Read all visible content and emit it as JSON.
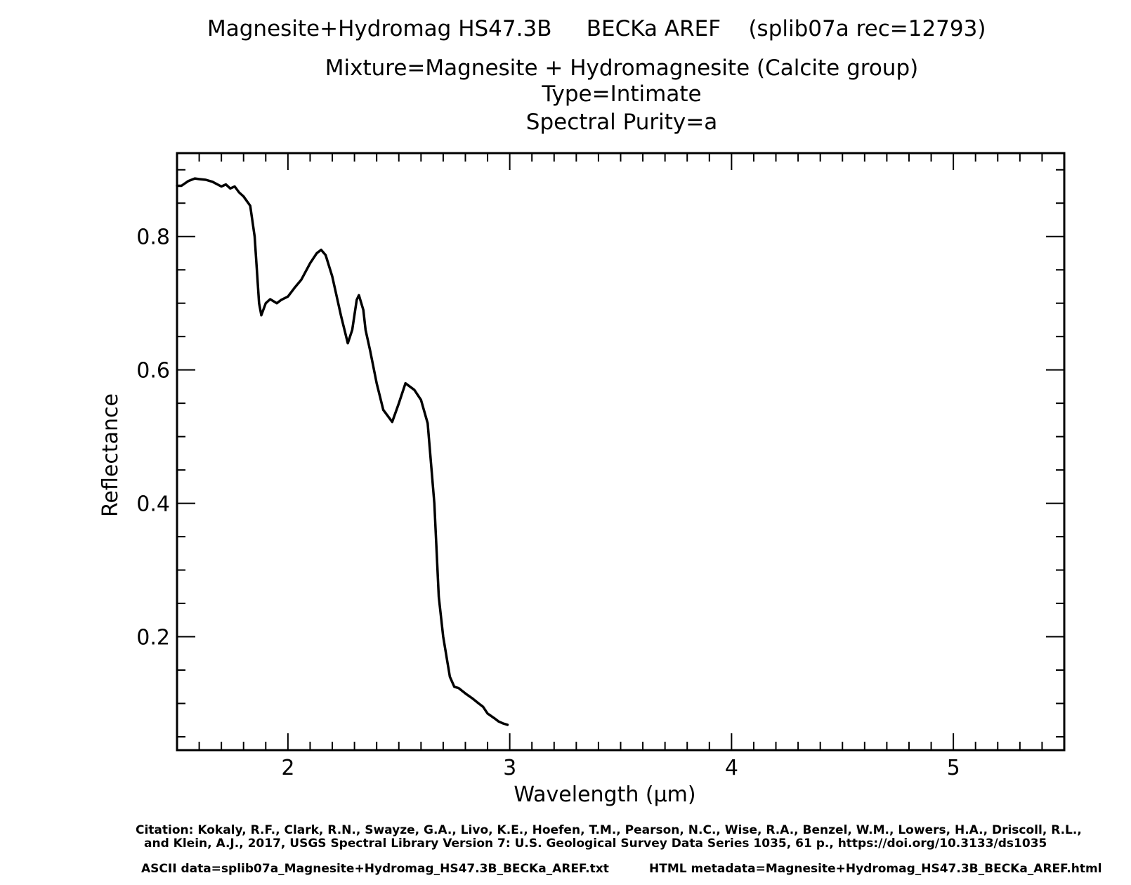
{
  "header": {
    "title_main": "Magnesite+Hydromag HS47.3B     BECKa AREF    (splib07a rec=12793)",
    "title_sub1": "Mixture=Magnesite + Hydromagnesite (Calcite group)",
    "title_sub2": "Type=Intimate",
    "title_sub3": "Spectral Purity=a"
  },
  "footer": {
    "citation_line1": "Citation: Kokaly, R.F., Clark, R.N., Swayze, G.A., Livo, K.E., Hoefen, T.M., Pearson, N.C., Wise, R.A., Benzel, W.M., Lowers, H.A., Driscoll, R.L.,",
    "citation_line2": "and Klein, A.J., 2017, USGS Spectral Library Version 7: U.S. Geological Survey Data Series 1035, 61 p., https://doi.org/10.3133/ds1035",
    "ascii_data": "ASCII data=splib07a_Magnesite+Hydromag_HS47.3B_BECKa_AREF.txt",
    "html_metadata": "HTML metadata=Magnesite+Hydromag_HS47.3B_BECKa_AREF.html"
  },
  "colors": {
    "line": "#000000",
    "background": "#ffffff"
  },
  "chart_data": {
    "type": "line",
    "title": "Magnesite+Hydromag HS47.3B     BECKa AREF    (splib07a rec=12793)",
    "xlabel": "Wavelength (μm)",
    "ylabel": "Reflectance",
    "xlim": [
      1.5,
      5.5
    ],
    "ylim": [
      0.03,
      0.925
    ],
    "x_ticks": [
      2,
      3,
      4,
      5
    ],
    "x_tick_labels": [
      "2",
      "3",
      "4",
      "5"
    ],
    "x_minor_step": 0.1,
    "y_ticks": [
      0.2,
      0.4,
      0.6,
      0.8
    ],
    "y_tick_labels": [
      "0.2",
      "0.4",
      "0.6",
      "0.8"
    ],
    "y_minor_step": 0.05,
    "grid": false,
    "series": [
      {
        "name": "Magnesite+Hydromag HS47.3B",
        "x": [
          1.5,
          1.52,
          1.55,
          1.58,
          1.6,
          1.63,
          1.66,
          1.7,
          1.72,
          1.74,
          1.76,
          1.78,
          1.8,
          1.83,
          1.85,
          1.87,
          1.88,
          1.9,
          1.92,
          1.95,
          1.97,
          2.0,
          2.03,
          2.06,
          2.1,
          2.13,
          2.15,
          2.17,
          2.2,
          2.24,
          2.27,
          2.29,
          2.31,
          2.32,
          2.34,
          2.35,
          2.37,
          2.4,
          2.43,
          2.47,
          2.5,
          2.53,
          2.57,
          2.6,
          2.63,
          2.66,
          2.68,
          2.7,
          2.72,
          2.73,
          2.75,
          2.77,
          2.8,
          2.83,
          2.86,
          2.88,
          2.9,
          2.93,
          2.95,
          2.97,
          2.99
        ],
        "y": [
          0.876,
          0.876,
          0.883,
          0.887,
          0.886,
          0.885,
          0.882,
          0.875,
          0.878,
          0.872,
          0.875,
          0.866,
          0.86,
          0.846,
          0.8,
          0.7,
          0.682,
          0.7,
          0.706,
          0.7,
          0.705,
          0.71,
          0.723,
          0.735,
          0.76,
          0.775,
          0.78,
          0.772,
          0.74,
          0.68,
          0.64,
          0.66,
          0.705,
          0.712,
          0.69,
          0.66,
          0.63,
          0.58,
          0.54,
          0.522,
          0.55,
          0.58,
          0.57,
          0.555,
          0.52,
          0.4,
          0.26,
          0.2,
          0.16,
          0.14,
          0.125,
          0.123,
          0.115,
          0.108,
          0.1,
          0.095,
          0.085,
          0.078,
          0.073,
          0.07,
          0.068
        ]
      }
    ]
  }
}
